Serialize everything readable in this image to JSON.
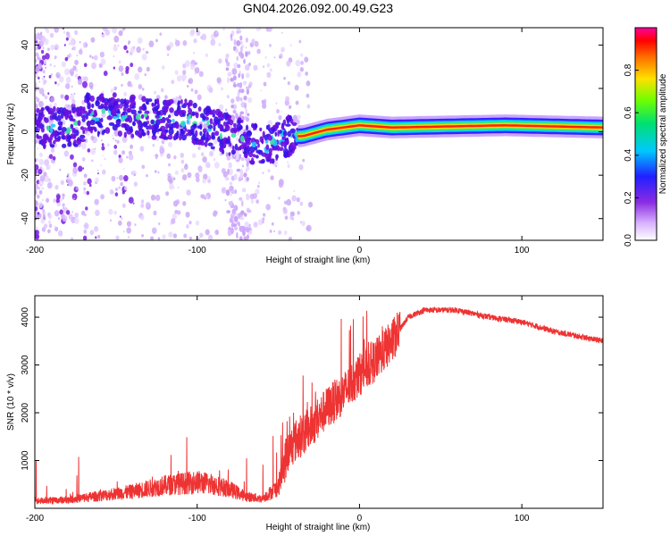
{
  "title": "GN04.2026.092.00.49.G23",
  "colors": {
    "snr_line": "#ee3333",
    "axis": "#000000"
  },
  "chart_data": [
    {
      "type": "heatmap",
      "xlabel": "Height of straight line (km)",
      "ylabel": "Frequency (Hz)",
      "xlim": [
        -200,
        150
      ],
      "ylim": [
        -50,
        48
      ],
      "xticks": [
        -200,
        -100,
        0,
        100
      ],
      "yticks": [
        -40,
        -20,
        0,
        20,
        40
      ],
      "colorbar": {
        "label": "Normalized spectral amplitude",
        "range": [
          0,
          1
        ],
        "ticks": [
          0.0,
          0.2,
          0.4,
          0.6,
          0.8
        ]
      },
      "trace": [
        {
          "x": -170,
          "y": 8
        },
        {
          "x": -150,
          "y": 8
        },
        {
          "x": -130,
          "y": 6
        },
        {
          "x": -110,
          "y": 6
        },
        {
          "x": -95,
          "y": 3
        },
        {
          "x": -75,
          "y": -3
        },
        {
          "x": -60,
          "y": -7
        },
        {
          "x": -45,
          "y": -2
        },
        {
          "x": -35,
          "y": -2
        },
        {
          "x": -20,
          "y": 1
        },
        {
          "x": 0,
          "y": 3
        },
        {
          "x": 20,
          "y": 2
        },
        {
          "x": 90,
          "y": 3
        },
        {
          "x": 150,
          "y": 2
        }
      ]
    },
    {
      "type": "line",
      "xlabel": "Height of straight line (km)",
      "ylabel": "SNR (10 * v/v)",
      "xlim": [
        -200,
        150
      ],
      "ylim": [
        0,
        4450
      ],
      "xticks": [
        -200,
        -100,
        0,
        100
      ],
      "yticks": [
        1000,
        2000,
        3000,
        4000
      ],
      "series": [
        {
          "name": "SNR",
          "points": [
            {
              "x": -200,
              "y": 150
            },
            {
              "x": -180,
              "y": 180
            },
            {
              "x": -160,
              "y": 260
            },
            {
              "x": -140,
              "y": 350
            },
            {
              "x": -120,
              "y": 480
            },
            {
              "x": -100,
              "y": 550
            },
            {
              "x": -90,
              "y": 500
            },
            {
              "x": -80,
              "y": 400
            },
            {
              "x": -70,
              "y": 250
            },
            {
              "x": -60,
              "y": 200
            },
            {
              "x": -50,
              "y": 450
            },
            {
              "x": -45,
              "y": 1100
            },
            {
              "x": -40,
              "y": 1400
            },
            {
              "x": -30,
              "y": 1700
            },
            {
              "x": -20,
              "y": 2100
            },
            {
              "x": -10,
              "y": 2400
            },
            {
              "x": 0,
              "y": 2800
            },
            {
              "x": 10,
              "y": 3100
            },
            {
              "x": 20,
              "y": 3500
            },
            {
              "x": 30,
              "y": 4000
            },
            {
              "x": 40,
              "y": 4150
            },
            {
              "x": 60,
              "y": 4150
            },
            {
              "x": 80,
              "y": 4000
            },
            {
              "x": 100,
              "y": 3900
            },
            {
              "x": 120,
              "y": 3700
            },
            {
              "x": 150,
              "y": 3500
            }
          ]
        }
      ]
    }
  ]
}
